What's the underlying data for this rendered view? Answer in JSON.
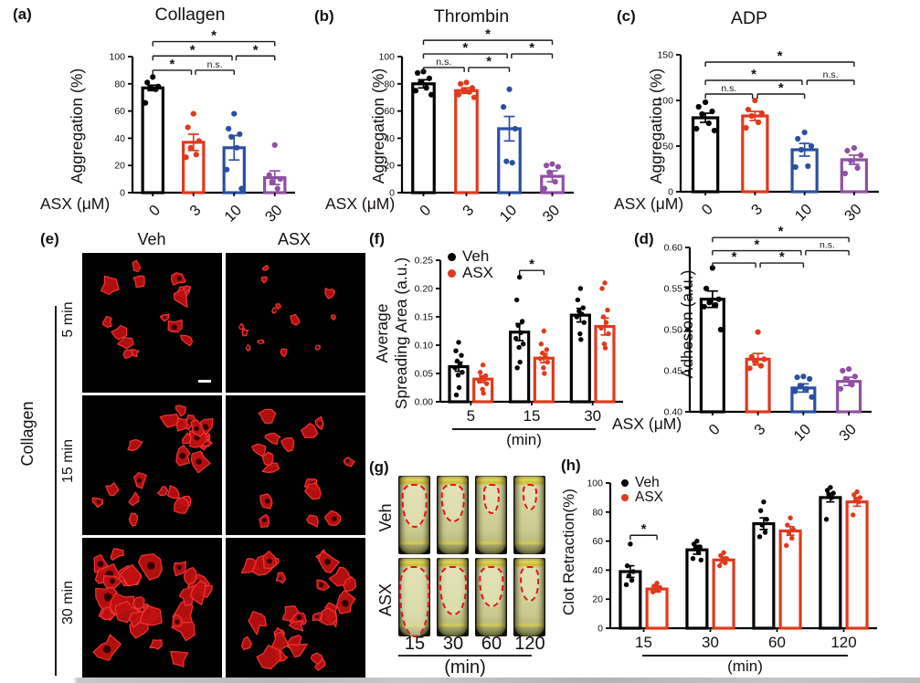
{
  "panels": {
    "a": {
      "letter": "(a)"
    },
    "b": {
      "letter": "(b)"
    },
    "c": {
      "letter": "(c)"
    },
    "d": {
      "letter": "(d)"
    },
    "e": {
      "letter": "(e)",
      "col_headers": [
        "Veh",
        "ASX"
      ],
      "row_labels": [
        "5 min",
        "15 min",
        "30 min"
      ],
      "side_label": "Collagen",
      "cells": [
        {
          "row": 0,
          "col": 0,
          "count": 15,
          "rmin": 4,
          "rmax": 9
        },
        {
          "row": 0,
          "col": 1,
          "count": 13,
          "rmin": 2.5,
          "rmax": 5.5
        },
        {
          "row": 1,
          "col": 0,
          "count": 24,
          "rmin": 5,
          "rmax": 10
        },
        {
          "row": 1,
          "col": 1,
          "count": 15,
          "rmin": 4,
          "rmax": 8
        },
        {
          "row": 2,
          "col": 0,
          "count": 32,
          "rmin": 6,
          "rmax": 13
        },
        {
          "row": 2,
          "col": 1,
          "count": 28,
          "rmin": 5,
          "rmax": 11
        }
      ]
    },
    "f": {
      "letter": "(f)"
    },
    "g": {
      "letter": "(g)",
      "row_labels": [
        "Veh",
        "ASX"
      ],
      "time_labels": [
        "15",
        "30",
        "60",
        "120"
      ],
      "xlabel": "(min)",
      "clots": [
        [
          {
            "w": 0.82,
            "h": 0.55
          },
          {
            "w": 0.76,
            "h": 0.48
          },
          {
            "w": 0.52,
            "h": 0.38
          },
          {
            "w": 0.46,
            "h": 0.33
          }
        ],
        [
          {
            "w": 0.96,
            "h": 0.9
          },
          {
            "w": 0.86,
            "h": 0.62
          },
          {
            "w": 0.78,
            "h": 0.52
          },
          {
            "w": 0.62,
            "h": 0.45
          }
        ]
      ]
    },
    "h": {
      "letter": "(h)"
    }
  },
  "colors": {
    "veh_black": "#000000",
    "asx_red": "#e0391c",
    "blue": "#2b4fa0",
    "purple": "#8f51a1",
    "sig_line": "#1a1a1a",
    "fluor_red": "#c01010"
  },
  "chart_data": [
    {
      "panel": "a",
      "type": "bar",
      "title": "Collagen",
      "ylabel": "Aggregation (%)",
      "xlabel": "ASX (μM)",
      "categories": [
        "0",
        "3",
        "10",
        "30"
      ],
      "values": [
        77,
        37,
        33,
        11
      ],
      "errors": [
        2,
        6,
        9,
        5
      ],
      "colors": [
        "#000000",
        "#e0391c",
        "#2b4fa0",
        "#8f51a1"
      ],
      "point_sets": [
        [
          85,
          81,
          78,
          77,
          76,
          66
        ],
        [
          58,
          48,
          38,
          33,
          28,
          26
        ],
        [
          58,
          47,
          43,
          41,
          33,
          17,
          3
        ],
        [
          35,
          13,
          10,
          8,
          3
        ]
      ],
      "ylim": [
        0,
        100
      ],
      "yticks": [
        0,
        20,
        40,
        60,
        80,
        100
      ],
      "ytick_labels": [
        "0",
        "20",
        "40",
        "60",
        "80",
        "100"
      ],
      "rotate_x": true,
      "significance": [
        {
          "x1": 0,
          "x2": 0.95,
          "y": 90,
          "label": "*"
        },
        {
          "x1": 1.05,
          "x2": 2,
          "y": 90,
          "label": "n.s."
        },
        {
          "x1": 0,
          "x2": 1.95,
          "y": 100.5,
          "label": "*"
        },
        {
          "x1": 2.05,
          "x2": 3,
          "y": 100.5,
          "label": "*"
        },
        {
          "x1": 0,
          "x2": 3,
          "y": 111,
          "label": "*"
        }
      ]
    },
    {
      "panel": "b",
      "type": "bar",
      "title": "Thrombin",
      "ylabel": "Aggregation (%)",
      "xlabel": "ASX (μM)",
      "categories": [
        "0",
        "3",
        "10",
        "30"
      ],
      "values": [
        80,
        75,
        47,
        12
      ],
      "errors": [
        3,
        2,
        9,
        4
      ],
      "colors": [
        "#000000",
        "#e0391c",
        "#2b4fa0",
        "#8f51a1"
      ],
      "point_sets": [
        [
          89,
          88,
          84,
          81,
          77,
          75,
          72
        ],
        [
          81,
          80,
          77,
          75,
          74,
          72,
          70
        ],
        [
          76,
          63,
          47,
          23,
          22
        ],
        [
          21,
          20,
          19,
          15,
          8,
          3
        ]
      ],
      "ylim": [
        0,
        100
      ],
      "yticks": [
        0,
        20,
        40,
        60,
        80,
        100
      ],
      "ytick_labels": [
        "0",
        "20",
        "40",
        "60",
        "80",
        "100"
      ],
      "rotate_x": true,
      "significance": [
        {
          "x1": 0,
          "x2": 0.95,
          "y": 92,
          "label": "n.s."
        },
        {
          "x1": 1.05,
          "x2": 2,
          "y": 92,
          "label": "*"
        },
        {
          "x1": 0,
          "x2": 1.95,
          "y": 102,
          "label": "*"
        },
        {
          "x1": 2.05,
          "x2": 3,
          "y": 102,
          "label": "*"
        },
        {
          "x1": 0,
          "x2": 3,
          "y": 112,
          "label": "*"
        }
      ]
    },
    {
      "panel": "c",
      "type": "bar",
      "title": "ADP",
      "ylabel": "Aggregation (%)",
      "xlabel": "ASX (μM)",
      "categories": [
        "0",
        "3",
        "10",
        "30"
      ],
      "values": [
        81,
        83,
        46,
        35
      ],
      "errors": [
        5,
        5,
        7,
        5
      ],
      "colors": [
        "#000000",
        "#e0391c",
        "#2b4fa0",
        "#8f51a1"
      ],
      "point_sets": [
        [
          98,
          93,
          88,
          85,
          75,
          69,
          67
        ],
        [
          100,
          90,
          86,
          83,
          76,
          70
        ],
        [
          65,
          58,
          50,
          46,
          28,
          27
        ],
        [
          48,
          45,
          40,
          34,
          26,
          20
        ]
      ],
      "ylim": [
        0,
        150
      ],
      "yticks": [
        0,
        50,
        100,
        150
      ],
      "ytick_labels": [
        "0",
        "50",
        "100",
        "150"
      ],
      "rotate_x": true,
      "significance": [
        {
          "x1": 0,
          "x2": 0.95,
          "y": 107,
          "label": "n.s."
        },
        {
          "x1": 1.05,
          "x2": 2,
          "y": 107,
          "label": "*"
        },
        {
          "x1": 0,
          "x2": 1.95,
          "y": 122,
          "label": "*"
        },
        {
          "x1": 2.05,
          "x2": 3,
          "y": 122,
          "label": "n.s."
        },
        {
          "x1": 0,
          "x2": 3,
          "y": 142,
          "label": "*"
        }
      ]
    },
    {
      "panel": "d",
      "type": "bar",
      "title": "",
      "ylabel": "Adhesion (a.u.)",
      "xlabel": "ASX (μM)",
      "categories": [
        "0",
        "3",
        "10",
        "30"
      ],
      "values": [
        0.537,
        0.464,
        0.429,
        0.437
      ],
      "errors": [
        0.01,
        0.007,
        0.005,
        0.005
      ],
      "colors": [
        "#000000",
        "#e0391c",
        "#2b4fa0",
        "#8f51a1"
      ],
      "point_sets": [
        [
          0.575,
          0.55,
          0.537,
          0.533,
          0.53,
          0.528,
          0.5
        ],
        [
          0.497,
          0.467,
          0.464,
          0.461,
          0.456,
          0.453
        ],
        [
          0.443,
          0.442,
          0.44,
          0.432,
          0.428,
          0.425,
          0.418
        ],
        [
          0.452,
          0.45,
          0.443,
          0.44,
          0.433,
          0.428
        ]
      ],
      "ylim": [
        0.4,
        0.6
      ],
      "yticks": [
        0.4,
        0.45,
        0.5,
        0.55,
        0.6
      ],
      "ytick_labels": [
        "0.40",
        "0.45",
        "0.50",
        "0.55",
        "0.60"
      ],
      "rotate_x": true,
      "significance": [
        {
          "x1": 0,
          "x2": 0.95,
          "y": 0.581,
          "label": "*"
        },
        {
          "x1": 1.05,
          "x2": 2,
          "y": 0.581,
          "label": "*"
        },
        {
          "x1": 0,
          "x2": 1.95,
          "y": 0.596,
          "label": "*"
        },
        {
          "x1": 2.05,
          "x2": 3,
          "y": 0.596,
          "label": "n.s."
        },
        {
          "x1": 0,
          "x2": 3,
          "y": 0.612,
          "label": "*"
        }
      ]
    },
    {
      "panel": "f",
      "type": "grouped_bar",
      "title": "",
      "ylabel": "Average\nSpreading Area (a.u.)",
      "xlabel": "(min)",
      "categories": [
        "5",
        "15",
        "30"
      ],
      "series": [
        {
          "name": "Veh",
          "color": "#000000",
          "values": [
            0.062,
            0.123,
            0.153
          ],
          "errors": [
            0.008,
            0.015,
            0.012
          ],
          "point_sets": [
            [
              0.105,
              0.09,
              0.082,
              0.072,
              0.066,
              0.06,
              0.052,
              0.047,
              0.025,
              0.012
            ],
            [
              0.22,
              0.18,
              0.142,
              0.135,
              0.122,
              0.112,
              0.102,
              0.096,
              0.07,
              0.06
            ],
            [
              0.2,
              0.18,
              0.166,
              0.16,
              0.155,
              0.15,
              0.14,
              0.12,
              0.11
            ]
          ]
        },
        {
          "name": "ASX",
          "color": "#e0391c",
          "values": [
            0.04,
            0.077,
            0.133
          ],
          "errors": [
            0.006,
            0.008,
            0.015
          ],
          "point_sets": [
            [
              0.065,
              0.052,
              0.046,
              0.042,
              0.04,
              0.036,
              0.032,
              0.022,
              0.015
            ],
            [
              0.125,
              0.102,
              0.092,
              0.086,
              0.08,
              0.076,
              0.07,
              0.06,
              0.05
            ],
            [
              0.21,
              0.2,
              0.162,
              0.15,
              0.14,
              0.13,
              0.12,
              0.102,
              0.095
            ]
          ]
        }
      ],
      "ylim": [
        0,
        0.25
      ],
      "yticks": [
        0,
        0.05,
        0.1,
        0.15,
        0.2,
        0.25
      ],
      "ytick_labels": [
        "0.00",
        "0.05",
        "0.10",
        "0.15",
        "0.20",
        "0.25"
      ],
      "rotate_x": false,
      "x_underline": true,
      "legend_position": "top-left",
      "significance": [
        {
          "group": 1,
          "y": 0.232,
          "label": "*"
        }
      ]
    },
    {
      "panel": "h",
      "type": "grouped_bar",
      "title": "",
      "ylabel": "Clot Retraction(%)",
      "xlabel": "(min)",
      "categories": [
        "15",
        "30",
        "60",
        "120"
      ],
      "series": [
        {
          "name": "Veh",
          "color": "#000000",
          "values": [
            39,
            54,
            72,
            90
          ],
          "errors": [
            4,
            3,
            4,
            3
          ],
          "point_sets": [
            [
              58,
              43,
              39,
              36,
              33,
              30
            ],
            [
              60,
              58,
              56,
              55,
              52,
              48,
              47
            ],
            [
              87,
              81,
              75,
              71,
              66,
              63
            ],
            [
              97,
              95,
              93,
              92,
              90,
              75
            ]
          ]
        },
        {
          "name": "ASX",
          "color": "#e0391c",
          "values": [
            27,
            47,
            67,
            87
          ],
          "errors": [
            2,
            2,
            3,
            3
          ],
          "point_sets": [
            [
              31,
              29,
              28,
              27,
              26,
              25
            ],
            [
              52,
              50,
              48,
              47,
              45,
              43
            ],
            [
              76,
              71,
              68,
              66,
              62,
              57
            ],
            [
              94,
              92,
              90,
              88,
              87,
              78
            ]
          ]
        }
      ],
      "ylim": [
        0,
        100
      ],
      "yticks": [
        0,
        20,
        40,
        60,
        80,
        100
      ],
      "ytick_labels": [
        "0",
        "20",
        "40",
        "60",
        "80",
        "100"
      ],
      "rotate_x": false,
      "x_underline": true,
      "legend_position": "top-left",
      "significance": [
        {
          "group": 0,
          "y": 64,
          "label": "*"
        }
      ]
    }
  ]
}
